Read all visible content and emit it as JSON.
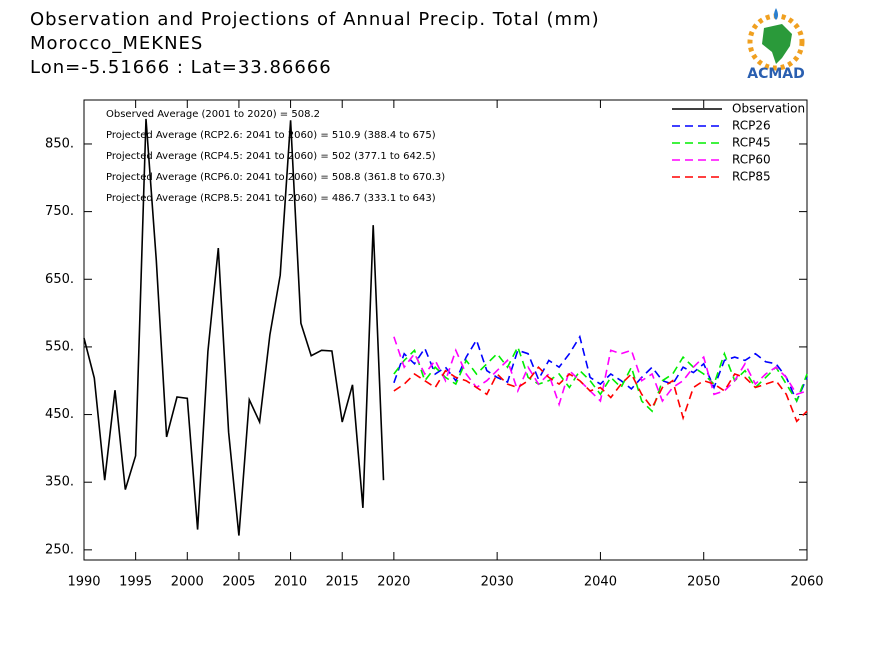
{
  "chart_data": {
    "type": "line",
    "title_lines": [
      "Observation and Projections of Annual Precip. Total (mm)",
      "Morocco_MEKNES",
      "Lon=-5.51666 : Lat=33.86666"
    ],
    "logo_text": "ACMAD",
    "annotations": [
      "Observed Average (2001 to 2020) = 508.2",
      "Projected Average (RCP2.6: 2041 to 2060) = 510.9 (388.4 to 675)",
      "Projected Average (RCP4.5: 2041 to 2060) = 502 (377.1 to 642.5)",
      "Projected Average (RCP6.0: 2041 to 2060) = 508.8 (361.8 to 670.3)",
      "Projected Average (RCP8.5: 2041 to 2060) = 486.7 (333.1 to 643)"
    ],
    "xlim": [
      1990,
      2060
    ],
    "xticks": [
      1990,
      1995,
      2000,
      2005,
      2010,
      2015,
      2020,
      2030,
      2040,
      2050,
      2060
    ],
    "ylim": [
      235,
      915
    ],
    "yticks": [
      {
        "value": 250,
        "label": "250."
      },
      {
        "value": 350,
        "label": "350."
      },
      {
        "value": 450,
        "label": "450."
      },
      {
        "value": 550,
        "label": "550."
      },
      {
        "value": 650,
        "label": "650."
      },
      {
        "value": 750,
        "label": "750."
      },
      {
        "value": 850,
        "label": "850."
      }
    ],
    "legend": "upper right",
    "series": [
      {
        "name": "Observation",
        "color": "#000000",
        "dashed": false,
        "x": [
          1990,
          1991,
          1992,
          1993,
          1994,
          1995,
          1996,
          1997,
          1998,
          1999,
          2000,
          2001,
          2002,
          2003,
          2004,
          2005,
          2006,
          2007,
          2008,
          2009,
          2010,
          2011,
          2012,
          2013,
          2014,
          2015,
          2016,
          2017,
          2018,
          2019
        ],
        "values": [
          563,
          504,
          353,
          486,
          339,
          389,
          887,
          678,
          417,
          476,
          474,
          280,
          543,
          696,
          424,
          271,
          472,
          439,
          568,
          656,
          885,
          585,
          537,
          545,
          544,
          439,
          494,
          312,
          730,
          353
        ]
      },
      {
        "name": "RCP26",
        "color": "#0000ff",
        "dashed": true,
        "x": [
          2020,
          2021,
          2022,
          2023,
          2024,
          2025,
          2026,
          2027,
          2028,
          2029,
          2030,
          2031,
          2032,
          2033,
          2034,
          2035,
          2036,
          2037,
          2038,
          2039,
          2040,
          2041,
          2042,
          2043,
          2044,
          2045,
          2046,
          2047,
          2048,
          2049,
          2050,
          2051,
          2052,
          2053,
          2054,
          2055,
          2056,
          2057,
          2058,
          2059,
          2060
        ],
        "values": [
          497,
          540,
          525,
          548,
          510,
          520,
          500,
          535,
          560,
          515,
          505,
          498,
          545,
          540,
          502,
          530,
          520,
          540,
          565,
          505,
          495,
          510,
          500,
          488,
          505,
          520,
          500,
          495,
          520,
          512,
          525,
          490,
          530,
          535,
          530,
          540,
          528,
          525,
          505,
          470,
          505
        ]
      },
      {
        "name": "RCP45",
        "color": "#00ee00",
        "dashed": true,
        "x": [
          2020,
          2021,
          2022,
          2023,
          2024,
          2025,
          2026,
          2027,
          2028,
          2029,
          2030,
          2031,
          2032,
          2033,
          2034,
          2035,
          2036,
          2037,
          2038,
          2039,
          2040,
          2041,
          2042,
          2043,
          2044,
          2045,
          2046,
          2047,
          2048,
          2049,
          2050,
          2051,
          2052,
          2053,
          2054,
          2055,
          2056,
          2057,
          2058,
          2059,
          2060
        ],
        "values": [
          510,
          530,
          545,
          500,
          520,
          505,
          495,
          530,
          510,
          525,
          540,
          520,
          550,
          505,
          495,
          500,
          510,
          490,
          515,
          500,
          480,
          505,
          490,
          520,
          470,
          455,
          500,
          510,
          535,
          520,
          510,
          495,
          540,
          500,
          515,
          490,
          505,
          520,
          495,
          470,
          510
        ]
      },
      {
        "name": "RCP60",
        "color": "#ff00ff",
        "dashed": true,
        "x": [
          2020,
          2021,
          2022,
          2023,
          2024,
          2025,
          2026,
          2027,
          2028,
          2029,
          2030,
          2031,
          2032,
          2033,
          2034,
          2035,
          2036,
          2037,
          2038,
          2039,
          2040,
          2041,
          2042,
          2043,
          2044,
          2045,
          2046,
          2047,
          2048,
          2049,
          2050,
          2051,
          2052,
          2053,
          2054,
          2055,
          2056,
          2057,
          2058,
          2059,
          2060
        ],
        "values": [
          565,
          520,
          540,
          510,
          530,
          500,
          545,
          510,
          490,
          500,
          515,
          530,
          485,
          520,
          495,
          510,
          465,
          515,
          500,
          485,
          470,
          545,
          540,
          545,
          500,
          510,
          470,
          490,
          500,
          520,
          535,
          480,
          485,
          500,
          525,
          495,
          510,
          520,
          505,
          480,
          485
        ]
      },
      {
        "name": "RCP85",
        "color": "#ff0000",
        "dashed": true,
        "x": [
          2020,
          2021,
          2022,
          2023,
          2024,
          2025,
          2026,
          2027,
          2028,
          2029,
          2030,
          2031,
          2032,
          2033,
          2034,
          2035,
          2036,
          2037,
          2038,
          2039,
          2040,
          2041,
          2042,
          2043,
          2044,
          2045,
          2046,
          2047,
          2048,
          2049,
          2050,
          2051,
          2052,
          2053,
          2054,
          2055,
          2056,
          2057,
          2058,
          2059,
          2060
        ],
        "values": [
          485,
          495,
          510,
          500,
          490,
          515,
          505,
          500,
          490,
          480,
          510,
          495,
          490,
          500,
          520,
          505,
          495,
          510,
          500,
          485,
          490,
          475,
          495,
          510,
          480,
          460,
          490,
          500,
          445,
          490,
          500,
          495,
          485,
          510,
          505,
          490,
          495,
          500,
          480,
          440,
          455
        ]
      }
    ]
  }
}
